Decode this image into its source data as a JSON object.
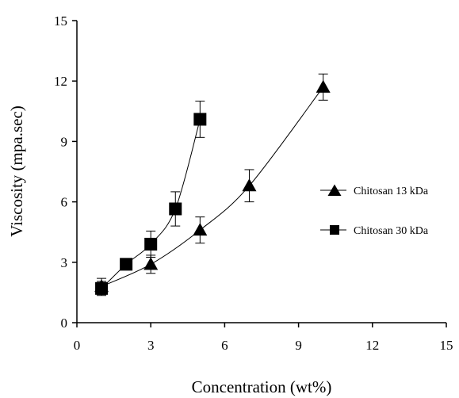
{
  "chart_data": {
    "type": "line",
    "xlabel": "Concentration (wt%)",
    "ylabel": "Viscosity (mpa.sec)",
    "xlim": [
      0,
      15
    ],
    "ylim": [
      0,
      15
    ],
    "x_ticks": [
      0,
      3,
      6,
      9,
      12,
      15
    ],
    "y_ticks": [
      0,
      3,
      6,
      9,
      12,
      15
    ],
    "grid": false,
    "legend_position": "right",
    "series": [
      {
        "name": "Chitosan 13 kDa",
        "marker": "triangle",
        "x": [
          1,
          3,
          5,
          7,
          10
        ],
        "y": [
          1.8,
          2.9,
          4.6,
          6.8,
          11.7
        ],
        "error": [
          0.4,
          0.45,
          0.65,
          0.8,
          0.65
        ]
      },
      {
        "name": "Chitosan 30 kDa",
        "marker": "square",
        "x": [
          1,
          2,
          3,
          4,
          5
        ],
        "y": [
          1.7,
          2.9,
          3.9,
          5.65,
          10.1
        ],
        "error": [
          0.35,
          0.2,
          0.65,
          0.85,
          0.9
        ]
      }
    ]
  }
}
